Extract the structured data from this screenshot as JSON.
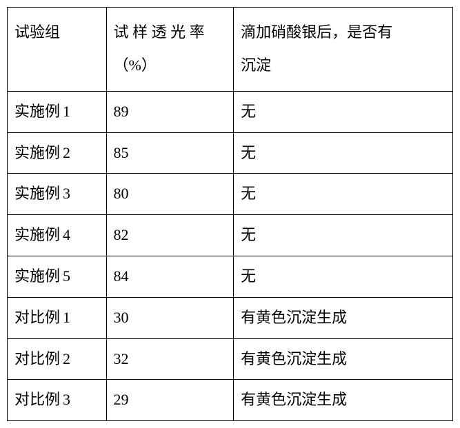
{
  "table": {
    "columns": [
      "试验组",
      "试样透光率（%）",
      "滴加硝酸银后，是否有沉淀"
    ],
    "header_col2_line1": "试",
    "header_col2_line1b": "样",
    "header_col2_line1c": "透",
    "header_col2_line1d": "光",
    "header_col2_line1e": "率",
    "header_col2_line2": "（%）",
    "header_col3_line1": "滴加硝酸银后，是否有",
    "header_col3_line2": "沉淀",
    "rows": [
      {
        "group_prefix": "实施例",
        "group_num": "1",
        "transmittance": "89",
        "precipitate": "无"
      },
      {
        "group_prefix": "实施例",
        "group_num": "2",
        "transmittance": "85",
        "precipitate": "无"
      },
      {
        "group_prefix": "实施例",
        "group_num": "3",
        "transmittance": "80",
        "precipitate": "无"
      },
      {
        "group_prefix": "实施例",
        "group_num": "4",
        "transmittance": "82",
        "precipitate": "无"
      },
      {
        "group_prefix": "实施例",
        "group_num": "5",
        "transmittance": "84",
        "precipitate": "无"
      },
      {
        "group_prefix": "对比例",
        "group_num": "1",
        "transmittance": "30",
        "precipitate": "有黄色沉淀生成"
      },
      {
        "group_prefix": "对比例",
        "group_num": "2",
        "transmittance": "32",
        "precipitate": "有黄色沉淀生成"
      },
      {
        "group_prefix": "对比例",
        "group_num": "3",
        "transmittance": "29",
        "precipitate": "有黄色沉淀生成"
      }
    ],
    "border_color": "#000000",
    "background_color": "#ffffff",
    "text_color": "#000000",
    "font_size": 22
  }
}
